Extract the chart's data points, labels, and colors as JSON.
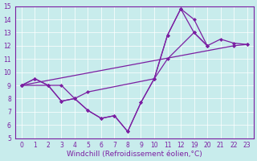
{
  "xlabel": "Windchill (Refroidissement éolien,°C)",
  "bg_color": "#c8ecec",
  "line_color": "#7b1fa2",
  "ylim": [
    5,
    15
  ],
  "yticks": [
    5,
    6,
    7,
    8,
    9,
    10,
    11,
    12,
    13,
    14,
    15
  ],
  "x_labels": [
    "0",
    "1",
    "2",
    "3",
    "4",
    "5",
    "6",
    "7",
    "8",
    "9",
    "10",
    "11",
    "12",
    "19",
    "20",
    "21",
    "22",
    "23"
  ],
  "series1_idx": [
    0,
    1,
    2,
    3,
    4,
    5,
    6,
    7,
    8,
    9,
    10,
    11,
    12,
    13,
    14,
    15,
    16,
    17
  ],
  "series1_y": [
    9.0,
    9.5,
    9.0,
    7.8,
    8.0,
    7.1,
    6.5,
    6.7,
    5.5,
    7.7,
    9.5,
    12.8,
    14.8,
    13.0,
    12.0,
    12.5,
    12.2,
    12.1
  ],
  "series2_idx": [
    0,
    1,
    2,
    3,
    4,
    5,
    6,
    7,
    8,
    9,
    10,
    11,
    12,
    13,
    14
  ],
  "series2_y": [
    9.0,
    9.5,
    9.0,
    7.8,
    8.0,
    7.1,
    6.5,
    6.7,
    5.5,
    7.7,
    9.5,
    12.8,
    14.8,
    14.0,
    12.0
  ],
  "series3_idx": [
    0,
    2,
    3,
    4,
    5,
    10,
    11,
    13,
    14
  ],
  "series3_y": [
    9.0,
    9.0,
    9.0,
    8.0,
    8.5,
    9.5,
    11.0,
    13.0,
    12.0
  ],
  "series4_idx": [
    0,
    16,
    17
  ],
  "series4_y": [
    9.0,
    12.0,
    12.1
  ],
  "tick_fontsize": 5.5,
  "xlabel_fontsize": 6.5,
  "lw": 0.9,
  "ms": 2.5
}
